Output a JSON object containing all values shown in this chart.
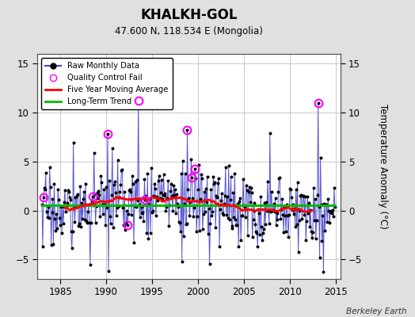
{
  "title": "KHALKH-GOL",
  "subtitle": "47.600 N, 118.534 E (Mongolia)",
  "ylabel": "Temperature Anomaly (°C)",
  "xlim": [
    1982.5,
    2015.5
  ],
  "ylim": [
    -7,
    16
  ],
  "yticks": [
    -5,
    0,
    5,
    10,
    15
  ],
  "xticks": [
    1985,
    1990,
    1995,
    2000,
    2005,
    2010,
    2015
  ],
  "background_color": "#e0e0e0",
  "plot_bg_color": "#ffffff",
  "grid_color": "#c8c8c8",
  "watermark": "Berkeley Earth",
  "raw_line_color": "#4444cc",
  "raw_dot_color": "#000000",
  "ma_color": "#ff0000",
  "trend_color": "#00bb00",
  "qc_color": "#ff00ff",
  "long_term_trend_value": 0.55,
  "seed": 17,
  "n_months": 384,
  "start_year": 1983.0,
  "noise_scale": 2.2
}
